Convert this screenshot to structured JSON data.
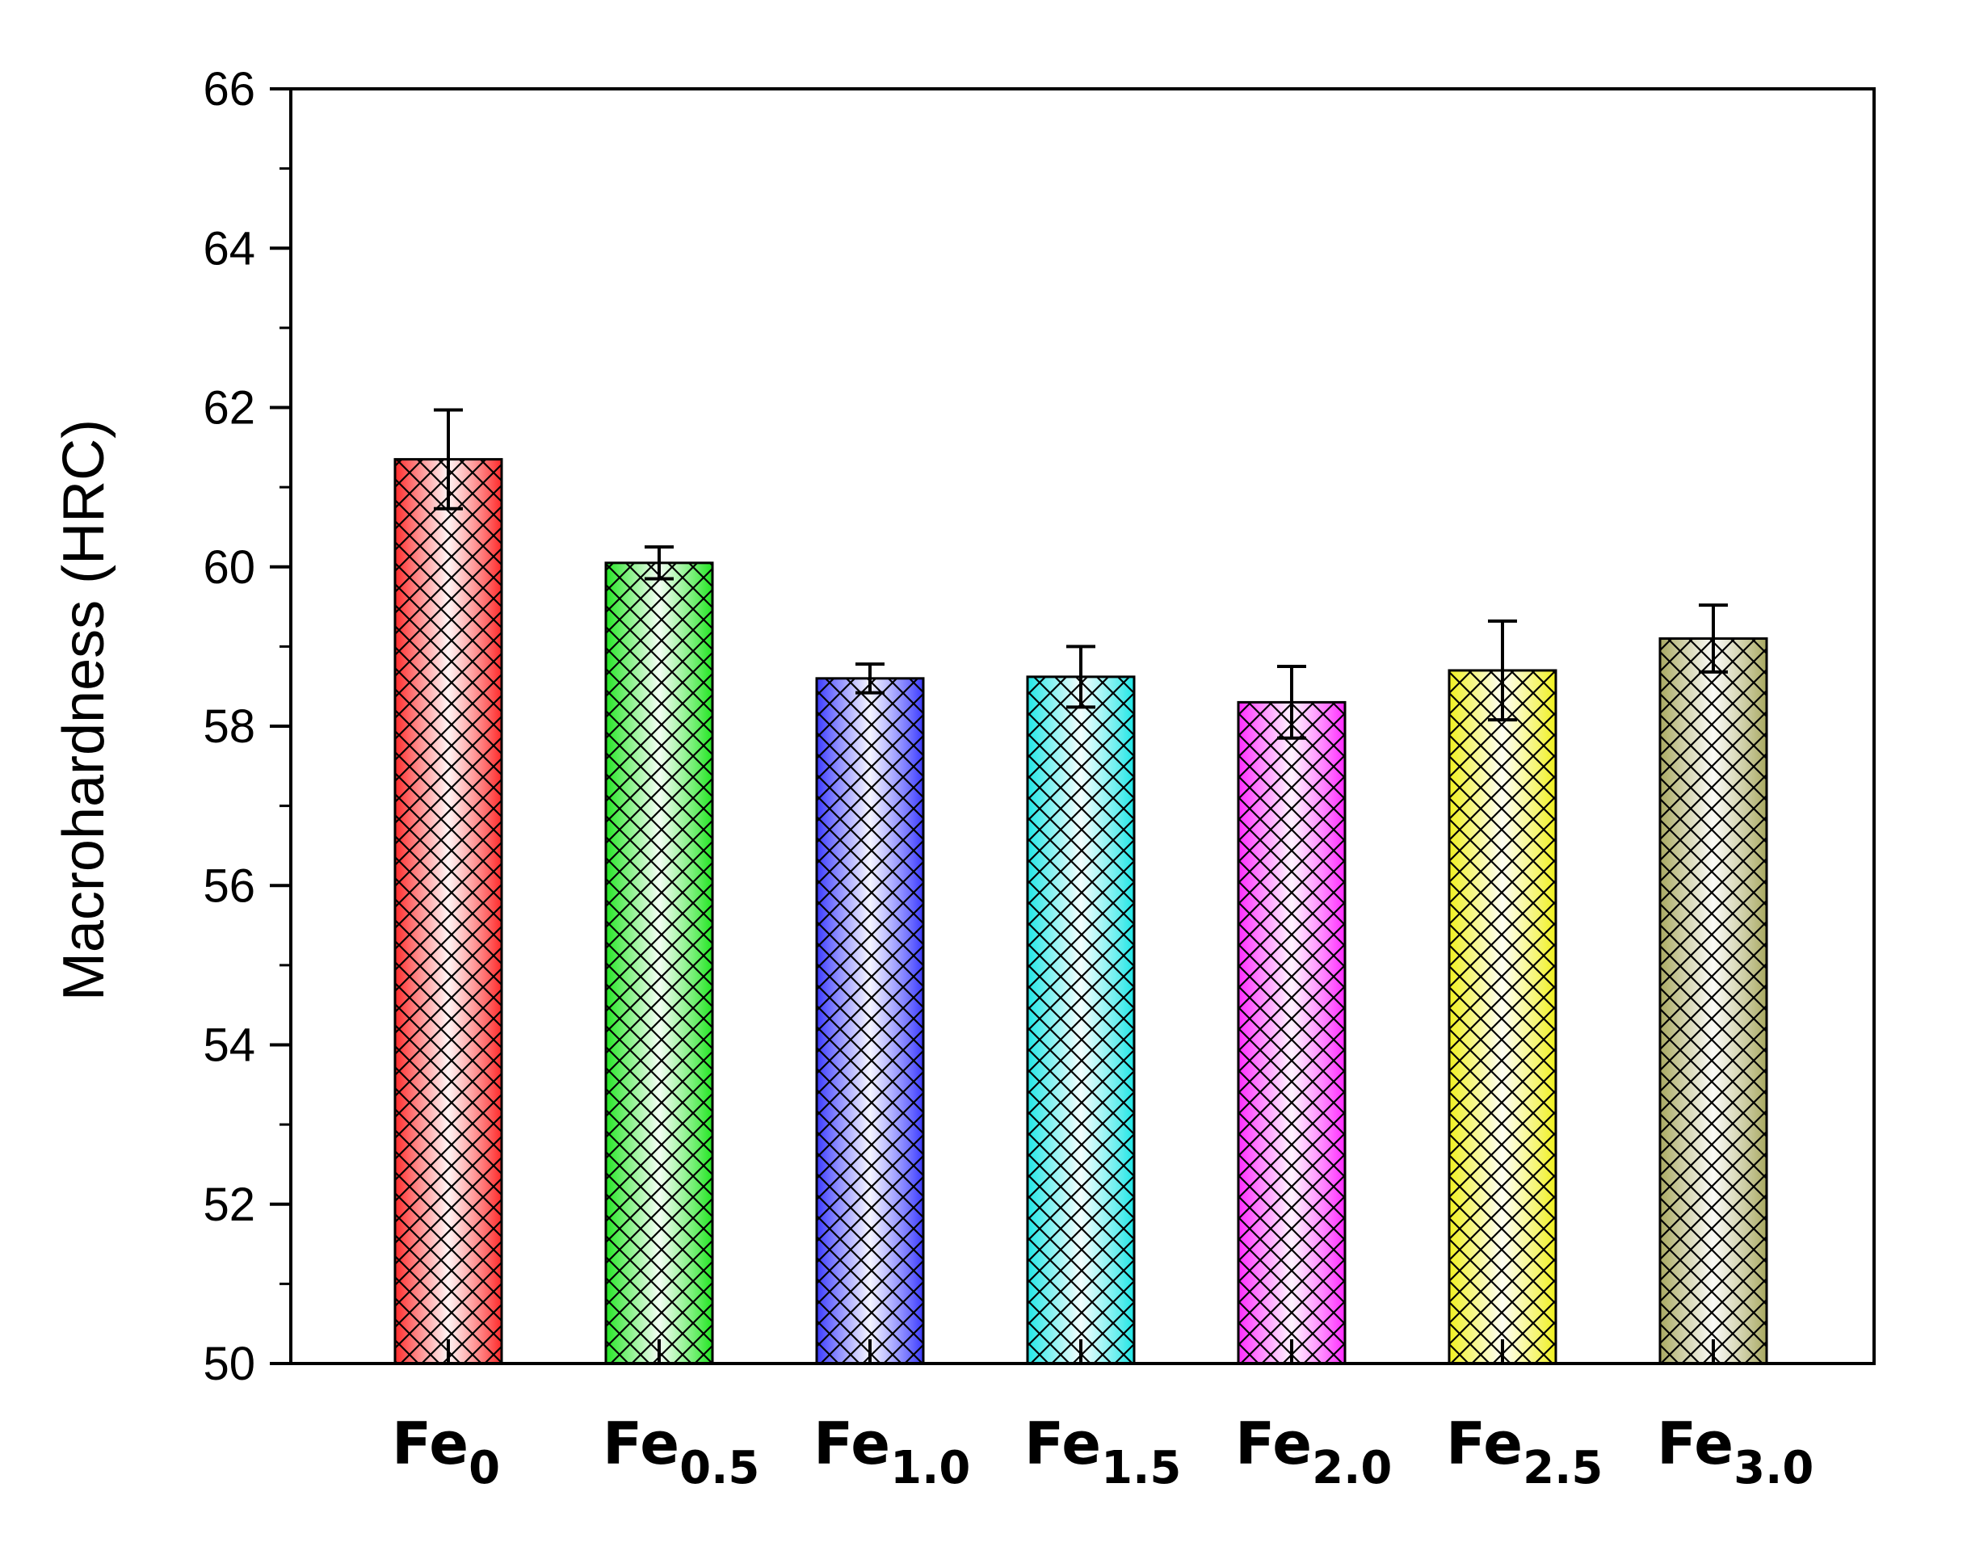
{
  "chart_data": {
    "type": "bar",
    "title": "",
    "xlabel": "",
    "ylabel": "Macrohardness (HRC)",
    "ylim": [
      50,
      66
    ],
    "yticks": [
      "50",
      "52",
      "54",
      "56",
      "58",
      "60",
      "62",
      "64",
      "66"
    ],
    "grid": false,
    "categories": [
      {
        "base": "Fe",
        "sub": "0"
      },
      {
        "base": "Fe",
        "sub": "0.5"
      },
      {
        "base": "Fe",
        "sub": "1.0"
      },
      {
        "base": "Fe",
        "sub": "1.5"
      },
      {
        "base": "Fe",
        "sub": "2.0"
      },
      {
        "base": "Fe",
        "sub": "2.5"
      },
      {
        "base": "Fe",
        "sub": "3.0"
      }
    ],
    "values": [
      61.35,
      60.05,
      58.6,
      58.62,
      58.3,
      58.7,
      59.1
    ],
    "errors": [
      0.62,
      0.2,
      0.18,
      0.38,
      0.45,
      0.62,
      0.42
    ],
    "bar_pattern": "crosshatch",
    "colors": [
      "#ff2a2a",
      "#22e622",
      "#3a3aff",
      "#1ee6e6",
      "#ff2aff",
      "#f0f01e",
      "#a8a860"
    ]
  }
}
